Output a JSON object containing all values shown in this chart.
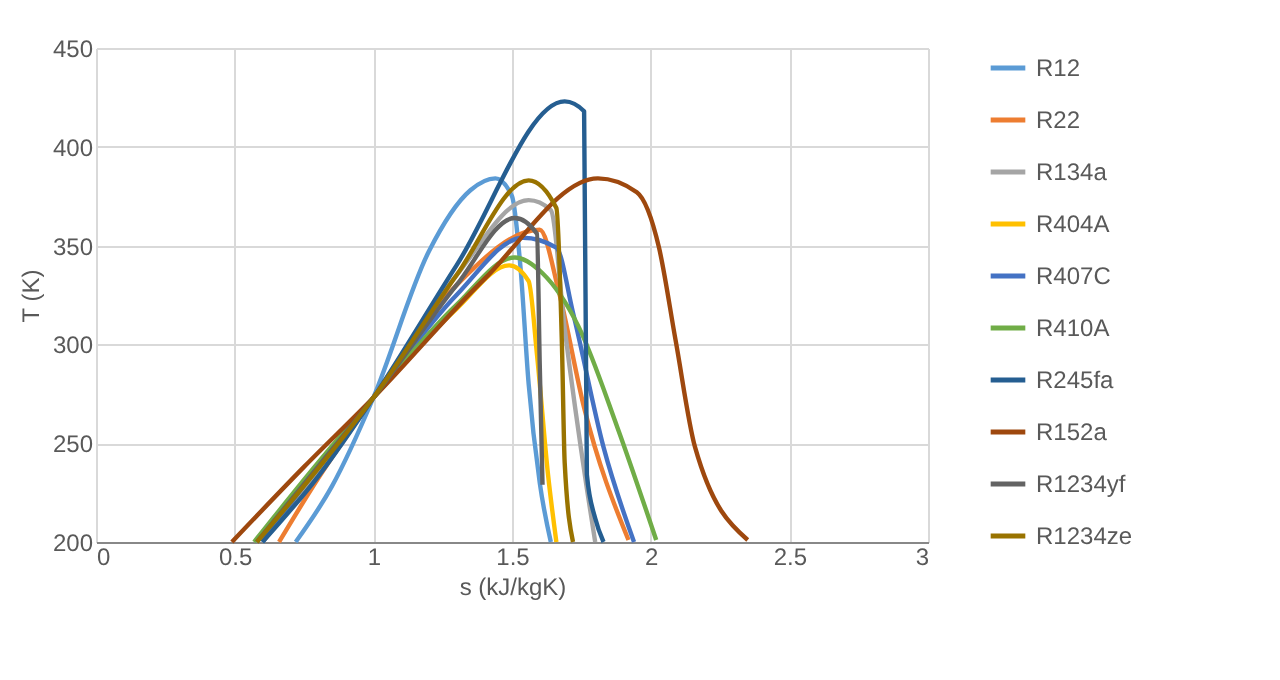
{
  "chart_data": {
    "type": "line",
    "xlabel": "s (kJ/kgK)",
    "ylabel": "T (K)",
    "xlim": [
      0,
      3
    ],
    "ylim": [
      200,
      450
    ],
    "xticks": [
      0,
      0.5,
      1,
      1.5,
      2,
      2.5,
      3
    ],
    "yticks": [
      200,
      250,
      300,
      350,
      400,
      450
    ],
    "grid": true,
    "legend": "right",
    "marker": "none",
    "line_style": "solid",
    "series": [
      {
        "name": "R12",
        "color": "#5b9bd5",
        "x": [
          0.72,
          0.85,
          1.0,
          1.2,
          1.35,
          1.44,
          1.5,
          1.53,
          1.56,
          1.6,
          1.64
        ],
        "values": [
          200,
          228,
          273,
          347,
          378,
          384,
          375,
          340,
          280,
          230,
          200
        ]
      },
      {
        "name": "R22",
        "color": "#ed7d31",
        "x": [
          0.66,
          0.8,
          1.0,
          1.3,
          1.6,
          1.67,
          1.76,
          1.92
        ],
        "values": [
          200,
          232,
          273,
          330,
          358,
          326,
          268,
          201
        ]
      },
      {
        "name": "R134a",
        "color": "#a5a5a5",
        "x": [
          0.6,
          0.8,
          1.0,
          1.3,
          1.56,
          1.64,
          1.69,
          1.77,
          1.8
        ],
        "values": [
          200,
          235,
          273,
          335,
          373,
          368,
          308,
          227,
          200
        ]
      },
      {
        "name": "R404A",
        "color": "#ffc000",
        "x": [
          1.0,
          1.3,
          1.49,
          1.56,
          1.59,
          1.63,
          1.66
        ],
        "values": [
          273,
          318,
          340,
          332,
          295,
          234,
          200
        ]
      },
      {
        "name": "R407C",
        "color": "#4472c4",
        "x": [
          0.6,
          0.8,
          1.0,
          1.3,
          1.54,
          1.66,
          1.72,
          1.83,
          1.94
        ],
        "values": [
          200,
          238,
          273,
          325,
          354,
          349,
          316,
          248,
          200
        ]
      },
      {
        "name": "R410A",
        "color": "#70ad47",
        "x": [
          0.57,
          0.8,
          1.0,
          1.3,
          1.51,
          1.61,
          1.74,
          1.88,
          2.02
        ],
        "values": [
          200,
          240,
          273,
          320,
          344,
          336,
          309,
          258,
          201
        ]
      },
      {
        "name": "R245fa",
        "color": "#255e91",
        "x": [
          0.6,
          0.8,
          1.0,
          1.3,
          1.69,
          1.76,
          1.77,
          1.8,
          1.83
        ],
        "values": [
          200,
          233,
          273,
          340,
          423,
          418,
          234,
          212,
          200
        ]
      },
      {
        "name": "R152a",
        "color": "#9e480e",
        "x": [
          0.49,
          0.75,
          1.0,
          1.4,
          1.81,
          1.95,
          2.03,
          2.09,
          2.16,
          2.35
        ],
        "values": [
          200,
          238,
          273,
          333,
          384,
          377,
          349,
          302,
          248,
          201
        ]
      },
      {
        "name": "R1234yf",
        "color": "#636363",
        "x": [
          0.58,
          0.8,
          1.0,
          1.3,
          1.51,
          1.59,
          1.6,
          1.61
        ],
        "values": [
          200,
          238,
          273,
          330,
          364,
          356,
          290,
          229
        ]
      },
      {
        "name": "R1234ze",
        "color": "#997300",
        "x": [
          0.58,
          0.8,
          1.0,
          1.3,
          1.56,
          1.66,
          1.68,
          1.69,
          1.72
        ],
        "values": [
          200,
          237,
          273,
          335,
          383,
          369,
          300,
          240,
          200
        ]
      }
    ]
  }
}
